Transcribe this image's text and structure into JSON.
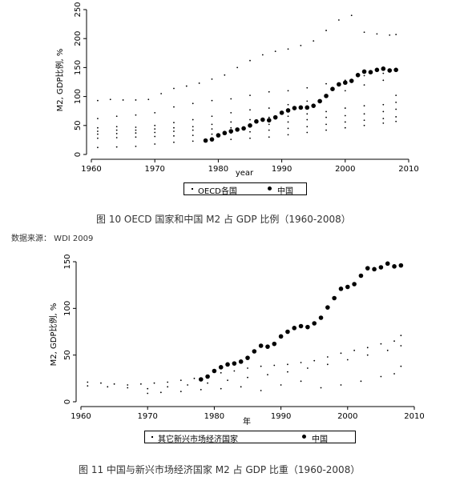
{
  "figure10": {
    "caption": "图 10 OECD 国家和中国 M2 占 GDP 比例（1960-2008）",
    "source": "数据来源： WDI 2009",
    "legend": {
      "other_label": "OECD各国",
      "china_label": "中国"
    },
    "chart_data": {
      "type": "scatter",
      "xlabel": "year",
      "ylabel": "M2, GDP比例, %",
      "xlim": [
        1960,
        2010
      ],
      "ylim": [
        0,
        250
      ],
      "x_ticks": [
        1960,
        1970,
        1980,
        1990,
        2000,
        2010
      ],
      "y_ticks": [
        0,
        50,
        100,
        150,
        200,
        250
      ],
      "series": [
        {
          "name": "中国",
          "marker": "large-dot",
          "x": [
            1978,
            1979,
            1980,
            1981,
            1982,
            1983,
            1984,
            1985,
            1986,
            1987,
            1988,
            1989,
            1990,
            1991,
            1992,
            1993,
            1994,
            1995,
            1996,
            1997,
            1998,
            1999,
            2000,
            2001,
            2002,
            2003,
            2004,
            2005,
            2006,
            2007,
            2008
          ],
          "y": [
            24,
            26,
            33,
            37,
            40,
            43,
            45,
            50,
            57,
            60,
            59,
            64,
            72,
            76,
            80,
            81,
            81,
            84,
            92,
            101,
            113,
            121,
            124,
            127,
            137,
            143,
            142,
            146,
            148,
            145,
            146
          ]
        },
        {
          "name": "OECD各国 A",
          "marker": "small-dot",
          "x": [
            1961,
            1963,
            1965,
            1967,
            1969,
            1971,
            1973,
            1975,
            1977,
            1979,
            1981,
            1983,
            1985,
            1987,
            1989,
            1991,
            1993,
            1995,
            1997,
            1999,
            2001,
            2003,
            2005,
            2007,
            2008
          ],
          "y": [
            93,
            95,
            94,
            94,
            95,
            105,
            114,
            118,
            123,
            130,
            137,
            150,
            162,
            172,
            178,
            182,
            188,
            196,
            214,
            232,
            240,
            211,
            208,
            206,
            207
          ]
        },
        {
          "name": "OECD各国 B",
          "marker": "small-dot",
          "x": [
            1961,
            1964,
            1967,
            1970,
            1973,
            1976,
            1979,
            1982,
            1985,
            1988,
            1991,
            1994,
            1997,
            2000,
            2003,
            2006,
            2008
          ],
          "y": [
            62,
            66,
            68,
            72,
            82,
            88,
            93,
            96,
            102,
            108,
            110,
            115,
            122,
            128,
            136,
            140,
            148
          ]
        },
        {
          "name": "OECD各国 C",
          "marker": "small-dot",
          "x": [
            1961,
            1964,
            1967,
            1970,
            1973,
            1976,
            1979,
            1982,
            1985,
            1988,
            1991,
            1994,
            1997,
            2000,
            2003,
            2006,
            2008
          ],
          "y": [
            46,
            48,
            47,
            50,
            55,
            60,
            66,
            72,
            77,
            80,
            86,
            92,
            100,
            110,
            120,
            128,
            102
          ]
        },
        {
          "name": "OECD各国 D",
          "marker": "small-dot",
          "x": [
            1961,
            1964,
            1967,
            1970,
            1973,
            1976,
            1979,
            1982,
            1985,
            1988,
            1991,
            1994,
            1997,
            2000,
            2003,
            2006,
            2008
          ],
          "y": [
            40,
            42,
            42,
            44,
            46,
            48,
            52,
            56,
            60,
            64,
            66,
            70,
            74,
            80,
            84,
            86,
            90
          ]
        },
        {
          "name": "OECD各国 E",
          "marker": "small-dot",
          "x": [
            1961,
            1964,
            1967,
            1970,
            1973,
            1976,
            1979,
            1982,
            1985,
            1988,
            1991,
            1994,
            1997,
            2000,
            2003,
            2006,
            2008
          ],
          "y": [
            35,
            36,
            37,
            38,
            40,
            42,
            44,
            46,
            49,
            52,
            56,
            60,
            64,
            67,
            70,
            74,
            78
          ]
        },
        {
          "name": "OECD各国 F",
          "marker": "small-dot",
          "x": [
            1961,
            1964,
            1967,
            1970,
            1973,
            1976,
            1979,
            1982,
            1985,
            1988,
            1991,
            1994,
            1997,
            2000,
            2003,
            2006,
            2008
          ],
          "y": [
            28,
            29,
            30,
            31,
            32,
            33,
            35,
            37,
            39,
            42,
            45,
            48,
            52,
            56,
            59,
            62,
            65
          ]
        },
        {
          "name": "OECD各国 G",
          "marker": "small-dot",
          "x": [
            1961,
            1964,
            1967,
            1970,
            1973,
            1976,
            1979,
            1982,
            1985,
            1988,
            1991,
            1994,
            1997,
            2000,
            2003,
            2006,
            2008
          ],
          "y": [
            12,
            13,
            14,
            18,
            21,
            23,
            24,
            26,
            28,
            30,
            34,
            38,
            42,
            46,
            50,
            54,
            57
          ]
        }
      ]
    }
  },
  "figure11": {
    "caption": "图 11 中国与新兴市场经济国家 M2 占 GDP 比重（1960-2008）",
    "legend": {
      "other_label": "其它新兴市场经济国家",
      "china_label": "中国"
    },
    "chart_data": {
      "type": "scatter",
      "xlabel": "年",
      "ylabel": "M2, GDP比例, %",
      "xlim": [
        1960,
        2010
      ],
      "ylim": [
        0,
        150
      ],
      "x_ticks": [
        1960,
        1970,
        1980,
        1990,
        2000,
        2010
      ],
      "y_ticks": [
        0,
        50,
        100,
        150
      ],
      "series": [
        {
          "name": "中国",
          "marker": "large-dot",
          "x": [
            1978,
            1979,
            1980,
            1981,
            1982,
            1983,
            1984,
            1985,
            1986,
            1987,
            1988,
            1989,
            1990,
            1991,
            1992,
            1993,
            1994,
            1995,
            1996,
            1997,
            1998,
            1999,
            2000,
            2001,
            2002,
            2003,
            2004,
            2005,
            2006,
            2007,
            2008
          ],
          "y": [
            24,
            27,
            33,
            37,
            40,
            41,
            43,
            47,
            54,
            60,
            59,
            62,
            70,
            75,
            79,
            81,
            80,
            84,
            90,
            101,
            111,
            121,
            123,
            126,
            135,
            143,
            142,
            144,
            148,
            145,
            146
          ]
        },
        {
          "name": "其它新兴市场经济国家 A",
          "marker": "small-dot",
          "x": [
            1961,
            1963,
            1965,
            1967,
            1969,
            1971,
            1973,
            1975,
            1977,
            1979,
            1981,
            1983,
            1985,
            1987,
            1989,
            1991,
            1993,
            1995,
            1997,
            1999,
            2001,
            2003,
            2005,
            2007,
            2008
          ],
          "y": [
            21,
            20,
            19,
            18,
            19,
            20,
            21,
            23,
            25,
            28,
            31,
            33,
            36,
            38,
            39,
            40,
            42,
            44,
            48,
            52,
            55,
            58,
            62,
            65,
            71
          ]
        },
        {
          "name": "其它新兴市场经济国家 B",
          "marker": "small-dot",
          "x": [
            1961,
            1964,
            1967,
            1970,
            1973,
            1976,
            1979,
            1982,
            1985,
            1988,
            1991,
            1994,
            1997,
            2000,
            2003,
            2006,
            2008
          ],
          "y": [
            17,
            16,
            15,
            14,
            16,
            18,
            20,
            23,
            26,
            29,
            32,
            36,
            40,
            45,
            50,
            55,
            60
          ]
        },
        {
          "name": "其它新兴市场经济国家 C",
          "marker": "small-dot",
          "x": [
            1970,
            1972,
            1975,
            1978,
            1981,
            1984,
            1987,
            1990,
            1993,
            1996,
            1999,
            2002,
            2005,
            2007,
            2008
          ],
          "y": [
            9,
            10,
            11,
            13,
            14,
            16,
            12,
            18,
            22,
            15,
            18,
            22,
            27,
            30,
            38
          ]
        }
      ]
    }
  }
}
